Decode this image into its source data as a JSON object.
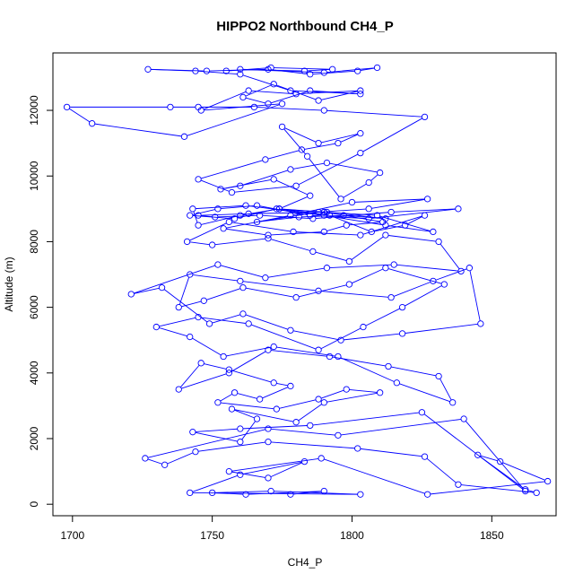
{
  "chart_data": {
    "type": "line",
    "title": "HIPPO2 Northbound CH4_P",
    "xlabel": "CH4_P",
    "ylabel": "Altitude (m)",
    "xlim": [
      1693,
      1873
    ],
    "ylim": [
      -350,
      13750
    ],
    "xticks": [
      "1700",
      "1750",
      "1800",
      "1850"
    ],
    "yticks": [
      "0",
      "2000",
      "4000",
      "6000",
      "8000",
      "10000",
      "12000"
    ],
    "marker": "open-circle",
    "grid": false,
    "legend": "none",
    "color": "#0000ff",
    "series": [
      {
        "x": [
          1778,
          1790,
          1762,
          1750,
          1771,
          1803,
          1742,
          1760,
          1783,
          1770,
          1756,
          1789,
          1827,
          1870,
          1853,
          1845,
          1862,
          1866,
          1838,
          1826,
          1802,
          1770,
          1744,
          1733,
          1726,
          1770,
          1795,
          1840,
          1862,
          1825,
          1785,
          1760,
          1743,
          1760,
          1766,
          1757,
          1780,
          1790,
          1810,
          1798,
          1788,
          1773,
          1752,
          1758,
          1767,
          1778,
          1772,
          1756,
          1746,
          1738,
          1756,
          1770,
          1792,
          1813,
          1831,
          1836,
          1816,
          1795,
          1772,
          1754,
          1742,
          1730,
          1745,
          1763,
          1788,
          1804,
          1818,
          1833,
          1812,
          1799,
          1780,
          1761,
          1747,
          1738,
          1742,
          1760,
          1788,
          1814,
          1829,
          1842,
          1846,
          1818,
          1796,
          1778,
          1761,
          1749,
          1732,
          1721,
          1752,
          1769,
          1791,
          1815,
          1839,
          1831,
          1812,
          1799,
          1786,
          1770,
          1750,
          1741,
          1756,
          1779,
          1803,
          1826,
          1819,
          1807,
          1792,
          1774,
          1760,
          1745,
          1743,
          1762,
          1790,
          1812,
          1829,
          1809,
          1790,
          1773,
          1758,
          1742,
          1752,
          1766,
          1785,
          1806,
          1838,
          1814,
          1786,
          1767,
          1751,
          1745,
          1763,
          1791,
          1812,
          1797,
          1781,
          1766,
          1788,
          1806,
          1827,
          1800,
          1778,
          1754,
          1770,
          1790,
          1798,
          1811,
          1790,
          1774,
          1785,
          1772,
          1753,
          1760,
          1778,
          1791,
          1810,
          1806,
          1796,
          1784,
          1775,
          1788,
          1803,
          1795,
          1782,
          1769,
          1745,
          1757,
          1780,
          1803,
          1826,
          1790,
          1765,
          1745,
          1735,
          1698,
          1707,
          1740,
          1775,
          1746,
          1763,
          1780,
          1803,
          1788,
          1772,
          1761,
          1770,
          1785,
          1803,
          1778,
          1760,
          1744,
          1727,
          1748,
          1770,
          1785,
          1802,
          1809,
          1790,
          1760,
          1783,
          1793,
          1771,
          1755
        ],
        "y": [
          300,
          400,
          300,
          350,
          400,
          300,
          350,
          900,
          1300,
          800,
          1000,
          1400,
          300,
          700,
          1300,
          1500,
          450,
          350,
          600,
          1450,
          1700,
          1900,
          1600,
          1200,
          1400,
          2300,
          2100,
          2600,
          400,
          2800,
          2400,
          2300,
          2200,
          1900,
          2600,
          2900,
          2500,
          3100,
          3400,
          3500,
          3200,
          2900,
          3100,
          3400,
          3200,
          3600,
          3700,
          4100,
          4300,
          3500,
          4000,
          4700,
          4500,
          4200,
          3900,
          3100,
          3700,
          4500,
          4800,
          4500,
          5100,
          5400,
          5700,
          5500,
          4700,
          5400,
          6000,
          6700,
          7200,
          6700,
          6300,
          6600,
          6200,
          6000,
          7000,
          6800,
          6500,
          6300,
          6800,
          7200,
          5500,
          5200,
          5000,
          5300,
          5800,
          5500,
          6600,
          6400,
          7300,
          6900,
          7200,
          7300,
          7100,
          8000,
          8200,
          7400,
          7700,
          8100,
          7900,
          8000,
          8600,
          8300,
          8200,
          8800,
          8500,
          8300,
          8800,
          9000,
          8800,
          8500,
          9000,
          9100,
          8800,
          8500,
          8300,
          8800,
          8900,
          9000,
          8700,
          8800,
          9000,
          9100,
          8800,
          8700,
          9000,
          8900,
          8700,
          8800,
          8750,
          8800,
          8850,
          8900,
          8700,
          8800,
          8750,
          8600,
          8900,
          9000,
          9300,
          9200,
          8800,
          8400,
          8200,
          8300,
          8500,
          8600,
          8900,
          9000,
          9400,
          9900,
          9600,
          9700,
          10200,
          10400,
          10100,
          9800,
          9300,
          10600,
          11500,
          11000,
          11300,
          11000,
          10800,
          10500,
          9900,
          9500,
          9700,
          10700,
          11800,
          12000,
          12100,
          12100,
          12100,
          12100,
          11600,
          11200,
          12200,
          12000,
          12600,
          12500,
          12600,
          12300,
          12800,
          12400,
          12200,
          12600,
          12500,
          12600,
          13100,
          13200,
          13250,
          13200,
          13250,
          13100,
          13200,
          13300,
          13150,
          13250,
          13200,
          13250,
          13300,
          13200
        ]
      }
    ]
  }
}
